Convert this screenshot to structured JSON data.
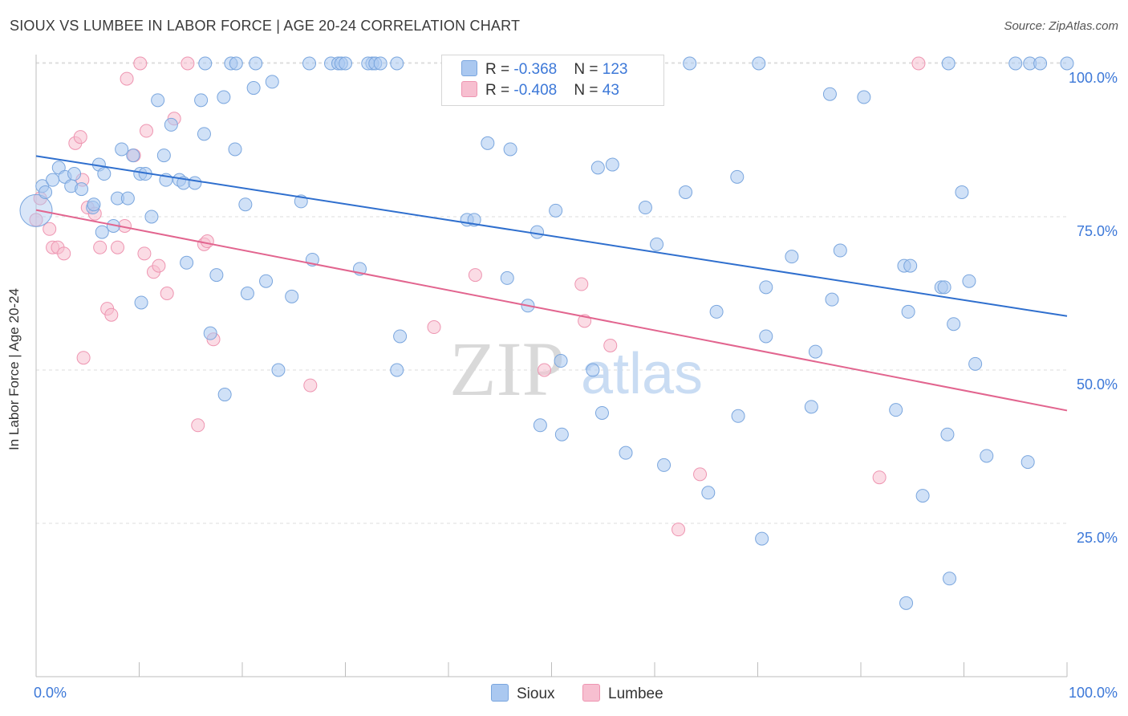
{
  "title": "SIOUX VS LUMBEE IN LABOR FORCE | AGE 20-24 CORRELATION CHART",
  "source": "Source: ZipAtlas.com",
  "watermark": {
    "zip": "ZIP",
    "atlas": "atlas"
  },
  "legend": {
    "sioux": {
      "r_label": "R = ",
      "r_value": "-0.368",
      "n_label": "N = ",
      "n_value": "123"
    },
    "lumbee": {
      "r_label": "R = ",
      "r_value": "-0.408",
      "n_label": "N = ",
      "n_value": "43"
    }
  },
  "colors": {
    "sioux_fill": "#aac8f0",
    "sioux_stroke": "#7aa6de",
    "sioux_line": "#2f6fce",
    "lumbee_fill": "#f7bfd0",
    "lumbee_stroke": "#ee95b1",
    "lumbee_line": "#e2658f",
    "axis_label": "#3c78d8",
    "grid": "#dddddd"
  },
  "chart_data": {
    "type": "scatter",
    "title": "SIOUX VS LUMBEE IN LABOR FORCE | AGE 20-24 CORRELATION CHART",
    "xlabel": "",
    "ylabel": "In Labor Force | Age 20-24",
    "xlim": [
      0,
      100
    ],
    "ylim": [
      0,
      105
    ],
    "x_tick_labels": [
      "0.0%",
      "100.0%"
    ],
    "y_ticks": [
      25,
      50,
      75,
      100
    ],
    "y_tick_labels": [
      "25.0%",
      "50.0%",
      "75.0%",
      "100.0%"
    ],
    "grid": true,
    "legend_position": "bottom-center",
    "series": [
      {
        "name": "Sioux",
        "trend": {
          "x": [
            0,
            100
          ],
          "y": [
            84.9,
            58.8
          ]
        },
        "points": [
          [
            0,
            76
          ],
          [
            0.6,
            80
          ],
          [
            0.9,
            79
          ],
          [
            1.6,
            81
          ],
          [
            2.2,
            83
          ],
          [
            2.8,
            81.5
          ],
          [
            3.4,
            80
          ],
          [
            3.7,
            82
          ],
          [
            4.4,
            79.5
          ],
          [
            5.5,
            76.5
          ],
          [
            5.6,
            77
          ],
          [
            6.1,
            83.5
          ],
          [
            6.6,
            82
          ],
          [
            6.4,
            72.5
          ],
          [
            7.5,
            73.5
          ],
          [
            7.9,
            78
          ],
          [
            8.3,
            86
          ],
          [
            8.9,
            78
          ],
          [
            9.4,
            85
          ],
          [
            10.1,
            82
          ],
          [
            10.6,
            82
          ],
          [
            10.2,
            61
          ],
          [
            11.2,
            75
          ],
          [
            11.8,
            94
          ],
          [
            12.4,
            85
          ],
          [
            12.6,
            81
          ],
          [
            13.1,
            90
          ],
          [
            13.9,
            81
          ],
          [
            14.3,
            80.5
          ],
          [
            14.6,
            67.5
          ],
          [
            15.4,
            80.5
          ],
          [
            16.0,
            94
          ],
          [
            16.3,
            88.5
          ],
          [
            16.4,
            100
          ],
          [
            16.9,
            56
          ],
          [
            17.5,
            65.5
          ],
          [
            18.2,
            94.5
          ],
          [
            18.9,
            100
          ],
          [
            18.3,
            46
          ],
          [
            19.3,
            86
          ],
          [
            19.4,
            100
          ],
          [
            20.3,
            77
          ],
          [
            20.5,
            62.5
          ],
          [
            21.1,
            96
          ],
          [
            21.3,
            100
          ],
          [
            22.3,
            64.5
          ],
          [
            22.9,
            97
          ],
          [
            23.5,
            50
          ],
          [
            24.8,
            62
          ],
          [
            25.7,
            77.5
          ],
          [
            26.5,
            100
          ],
          [
            26.8,
            68
          ],
          [
            28.6,
            100
          ],
          [
            29.3,
            100
          ],
          [
            29.6,
            100
          ],
          [
            30.0,
            100
          ],
          [
            31.4,
            66.5
          ],
          [
            32.6,
            100
          ],
          [
            32.2,
            100
          ],
          [
            32.9,
            100
          ],
          [
            33.4,
            100
          ],
          [
            35.0,
            100
          ],
          [
            35.0,
            50
          ],
          [
            35.3,
            55.5
          ],
          [
            41.8,
            74.5
          ],
          [
            42.5,
            74.5
          ],
          [
            43.8,
            87
          ],
          [
            45.7,
            65
          ],
          [
            46.0,
            86
          ],
          [
            47.7,
            60.5
          ],
          [
            48.6,
            100
          ],
          [
            47.6,
            100
          ],
          [
            48.6,
            72.5
          ],
          [
            48.9,
            41
          ],
          [
            50.4,
            76
          ],
          [
            50.9,
            51.5
          ],
          [
            51.0,
            39.5
          ],
          [
            54.0,
            50
          ],
          [
            54.5,
            83
          ],
          [
            54.9,
            43
          ],
          [
            55.9,
            83.5
          ],
          [
            57.2,
            36.5
          ],
          [
            59.1,
            76.5
          ],
          [
            60.2,
            70.5
          ],
          [
            60.9,
            34.5
          ],
          [
            63.0,
            79
          ],
          [
            63.4,
            100
          ],
          [
            65.2,
            30
          ],
          [
            66.0,
            59.5
          ],
          [
            68.0,
            81.5
          ],
          [
            68.1,
            42.5
          ],
          [
            70.1,
            100
          ],
          [
            70.8,
            55.5
          ],
          [
            70.8,
            63.5
          ],
          [
            70.4,
            22.5
          ],
          [
            73.3,
            68.5
          ],
          [
            75.6,
            53
          ],
          [
            75.2,
            44
          ],
          [
            77.0,
            95
          ],
          [
            77.2,
            61.5
          ],
          [
            78.0,
            69.5
          ],
          [
            80.3,
            94.5
          ],
          [
            83.4,
            43.5
          ],
          [
            84.2,
            67
          ],
          [
            84.6,
            59.5
          ],
          [
            84.8,
            67
          ],
          [
            86.0,
            29.5
          ],
          [
            87.8,
            63.5
          ],
          [
            88.1,
            63.5
          ],
          [
            88.5,
            100
          ],
          [
            88.4,
            39.5
          ],
          [
            88.6,
            16
          ],
          [
            89.8,
            79
          ],
          [
            89.0,
            57.5
          ],
          [
            90.5,
            64.5
          ],
          [
            91.1,
            51
          ],
          [
            92.2,
            36
          ],
          [
            95.0,
            100
          ],
          [
            96.2,
            35
          ],
          [
            96.4,
            100
          ],
          [
            97.4,
            100
          ],
          [
            100.0,
            100
          ],
          [
            84.4,
            12
          ]
        ]
      },
      {
        "name": "Lumbee",
        "trend": {
          "x": [
            0,
            100
          ],
          "y": [
            76.1,
            43.4
          ]
        },
        "points": [
          [
            0,
            74.5
          ],
          [
            0.4,
            78
          ],
          [
            1.3,
            73
          ],
          [
            1.6,
            70
          ],
          [
            2.1,
            70
          ],
          [
            2.7,
            69
          ],
          [
            3.8,
            87
          ],
          [
            4.3,
            88
          ],
          [
            4.5,
            81
          ],
          [
            4.6,
            52
          ],
          [
            5.0,
            76.5
          ],
          [
            5.7,
            75.5
          ],
          [
            6.2,
            70
          ],
          [
            6.9,
            60
          ],
          [
            7.3,
            59
          ],
          [
            7.9,
            70
          ],
          [
            8.6,
            73.5
          ],
          [
            8.8,
            97.5
          ],
          [
            9.5,
            85
          ],
          [
            10.1,
            100
          ],
          [
            10.5,
            69
          ],
          [
            10.7,
            89
          ],
          [
            11.4,
            66
          ],
          [
            11.9,
            67
          ],
          [
            12.7,
            62.5
          ],
          [
            13.4,
            91
          ],
          [
            14.7,
            100
          ],
          [
            15.7,
            41
          ],
          [
            16.3,
            70.5
          ],
          [
            16.6,
            71
          ],
          [
            17.2,
            55
          ],
          [
            26.6,
            47.5
          ],
          [
            38.6,
            57
          ],
          [
            42.3,
            100
          ],
          [
            42.6,
            65.5
          ],
          [
            49.3,
            50
          ],
          [
            52.9,
            64
          ],
          [
            53.2,
            58
          ],
          [
            55.7,
            54
          ],
          [
            62.3,
            24
          ],
          [
            64.4,
            33
          ],
          [
            81.8,
            32.5
          ],
          [
            85.6,
            100
          ]
        ]
      }
    ]
  }
}
